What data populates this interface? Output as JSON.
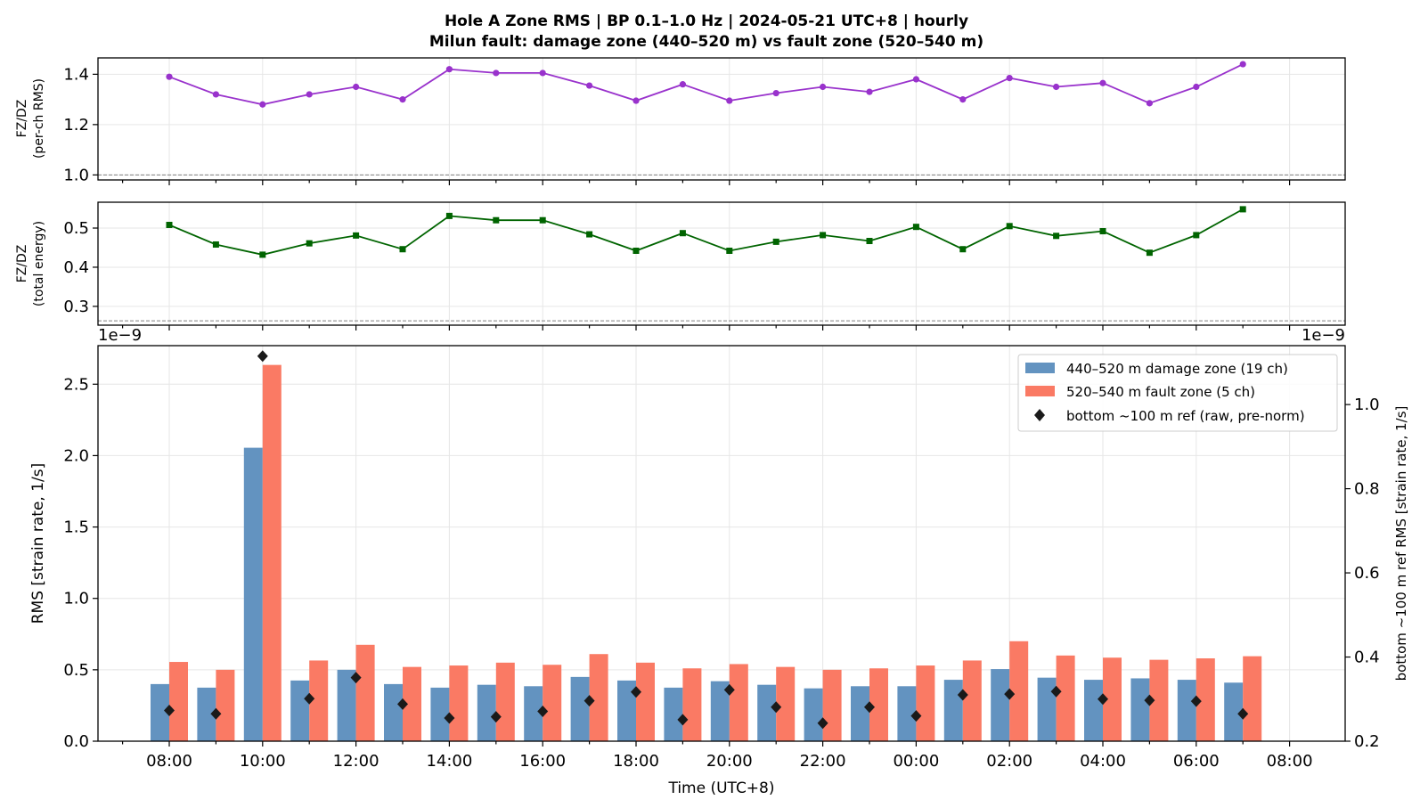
{
  "title_line1": "Hole A Zone RMS  |  BP 0.1–1.0 Hz  |  2024-05-21 UTC+8  |  hourly",
  "title_line2": "Milun fault: damage zone (440–520 m) vs fault zone (520–540 m)",
  "colors": {
    "ratio_rms": "#9932CC",
    "ratio_energy": "#006400",
    "damage_zone": "#6393c0",
    "fault_zone": "#fa7a64",
    "reference": "#1a1a1a",
    "grid": "#e6e6e6"
  },
  "chart_data": [
    {
      "type": "line",
      "ylabel_line1": "FZ/DZ",
      "ylabel_line2": "(per-ch RMS)",
      "ylim": [
        0.98,
        1.465
      ],
      "yticks": [
        1.0,
        1.2,
        1.4
      ],
      "ytick_labels": [
        "1.0",
        "1.2",
        "1.4"
      ],
      "reference_line": 1.0,
      "marker": "circle",
      "x": [
        "08:00",
        "09:00",
        "10:00",
        "11:00",
        "12:00",
        "13:00",
        "14:00",
        "15:00",
        "16:00",
        "17:00",
        "18:00",
        "19:00",
        "20:00",
        "21:00",
        "22:00",
        "23:00",
        "00:00",
        "01:00",
        "02:00",
        "03:00",
        "04:00",
        "05:00",
        "06:00",
        "07:00"
      ],
      "values": [
        1.39,
        1.32,
        1.28,
        1.32,
        1.35,
        1.3,
        1.42,
        1.405,
        1.405,
        1.355,
        1.295,
        1.36,
        1.295,
        1.325,
        1.35,
        1.33,
        1.38,
        1.3,
        1.385,
        1.35,
        1.365,
        1.285,
        1.35,
        1.44
      ]
    },
    {
      "type": "line",
      "ylabel_line1": "FZ/DZ",
      "ylabel_line2": "(total energy)",
      "ylim": [
        0.252,
        0.566
      ],
      "yticks": [
        0.3,
        0.4,
        0.5
      ],
      "ytick_labels": [
        "0.3",
        "0.4",
        "0.5"
      ],
      "reference_line": 0.263,
      "marker": "square",
      "x": [
        "08:00",
        "09:00",
        "10:00",
        "11:00",
        "12:00",
        "13:00",
        "14:00",
        "15:00",
        "16:00",
        "17:00",
        "18:00",
        "19:00",
        "20:00",
        "21:00",
        "22:00",
        "23:00",
        "00:00",
        "01:00",
        "02:00",
        "03:00",
        "04:00",
        "05:00",
        "06:00",
        "07:00"
      ],
      "values": [
        0.508,
        0.458,
        0.432,
        0.461,
        0.481,
        0.446,
        0.531,
        0.52,
        0.52,
        0.484,
        0.442,
        0.487,
        0.442,
        0.465,
        0.482,
        0.467,
        0.503,
        0.446,
        0.505,
        0.48,
        0.492,
        0.437,
        0.482,
        0.548
      ]
    },
    {
      "type": "bar",
      "offset_text_left": "1e−9",
      "offset_text_right": "1e−9",
      "xlabel": "Time (UTC+8)",
      "ylabel": "RMS  [strain rate, 1/s]",
      "ylabel_right": "bottom ~100 m ref RMS  [strain rate, 1/s]",
      "ylim": [
        0,
        2.77
      ],
      "yticks": [
        0.0,
        0.5,
        1.0,
        1.5,
        2.0,
        2.5
      ],
      "ytick_labels": [
        "0.0",
        "0.5",
        "1.0",
        "1.5",
        "2.0",
        "2.5"
      ],
      "ylim_right": [
        0.2,
        1.14
      ],
      "yticks_right": [
        0.2,
        0.4,
        0.6,
        0.8,
        1.0
      ],
      "ytick_labels_right": [
        "0.2",
        "0.4",
        "0.6",
        "0.8",
        "1.0"
      ],
      "xtick_labels": [
        "08:00",
        "10:00",
        "12:00",
        "14:00",
        "16:00",
        "18:00",
        "20:00",
        "22:00",
        "00:00",
        "02:00",
        "04:00",
        "06:00",
        "08:00"
      ],
      "categories": [
        "08:00",
        "09:00",
        "10:00",
        "11:00",
        "12:00",
        "13:00",
        "14:00",
        "15:00",
        "16:00",
        "17:00",
        "18:00",
        "19:00",
        "20:00",
        "21:00",
        "22:00",
        "23:00",
        "00:00",
        "01:00",
        "02:00",
        "03:00",
        "04:00",
        "05:00",
        "06:00",
        "07:00"
      ],
      "series": [
        {
          "name": "440–520 m  damage zone (19 ch)",
          "values": [
            0.4,
            0.375,
            2.055,
            0.425,
            0.5,
            0.4,
            0.375,
            0.395,
            0.385,
            0.45,
            0.425,
            0.375,
            0.42,
            0.395,
            0.37,
            0.385,
            0.385,
            0.43,
            0.505,
            0.445,
            0.43,
            0.44,
            0.43,
            0.41
          ]
        },
        {
          "name": "520–540 m  fault zone (5 ch)",
          "values": [
            0.555,
            0.5,
            2.635,
            0.565,
            0.675,
            0.52,
            0.53,
            0.55,
            0.535,
            0.61,
            0.55,
            0.51,
            0.54,
            0.52,
            0.5,
            0.51,
            0.53,
            0.565,
            0.7,
            0.6,
            0.585,
            0.57,
            0.58,
            0.595
          ]
        }
      ],
      "reference_series": {
        "name": "bottom ~100 m ref (raw, pre-norm)",
        "values": [
          0.273,
          0.265,
          1.115,
          0.301,
          0.351,
          0.288,
          0.255,
          0.258,
          0.271,
          0.296,
          0.317,
          0.251,
          0.322,
          0.281,
          0.243,
          0.281,
          0.26,
          0.31,
          0.312,
          0.318,
          0.3,
          0.297,
          0.295,
          0.265
        ]
      }
    }
  ]
}
